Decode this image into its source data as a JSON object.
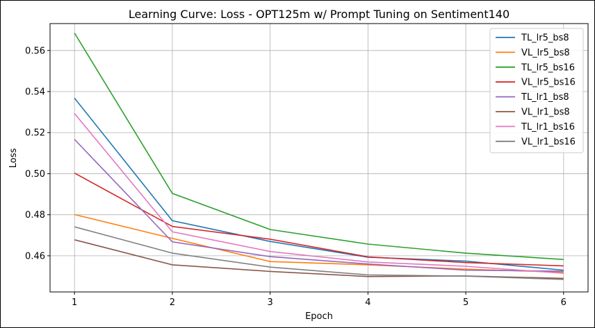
{
  "chart_data": {
    "type": "line",
    "title": "Learning Curve: Loss - OPT125m w/ Prompt Tuning on Sentiment140",
    "xlabel": "Epoch",
    "ylabel": "Loss",
    "x": [
      1,
      2,
      3,
      4,
      5,
      6
    ],
    "xlim": [
      0.75,
      6.25
    ],
    "ylim": [
      0.4424,
      0.5731
    ],
    "yticks": [
      0.46,
      0.48,
      0.5,
      0.52,
      0.54,
      0.56
    ],
    "ytick_labels": [
      "0.46",
      "0.48",
      "0.50",
      "0.52",
      "0.54",
      "0.56"
    ],
    "xtick_labels": [
      "1",
      "2",
      "3",
      "4",
      "5",
      "6"
    ],
    "grid": true,
    "legend_position": "top-right",
    "series": [
      {
        "name": "TL_lr5_bs8",
        "color": "#1f77b4",
        "values": [
          0.5368,
          0.4771,
          0.467,
          0.4593,
          0.4574,
          0.453
        ]
      },
      {
        "name": "VL_lr5_bs8",
        "color": "#ff7f0e",
        "values": [
          0.4801,
          0.4685,
          0.4572,
          0.4556,
          0.4535,
          0.452
        ]
      },
      {
        "name": "TL_lr5_bs16",
        "color": "#2ca02c",
        "values": [
          0.5685,
          0.4904,
          0.4728,
          0.4657,
          0.4613,
          0.4582
        ]
      },
      {
        "name": "VL_lr5_bs16",
        "color": "#d62728",
        "values": [
          0.5003,
          0.4743,
          0.4681,
          0.4595,
          0.4567,
          0.4551
        ]
      },
      {
        "name": "TL_lr1_bs8",
        "color": "#9467bd",
        "values": [
          0.5167,
          0.4668,
          0.4596,
          0.456,
          0.453,
          0.4525
        ]
      },
      {
        "name": "VL_lr1_bs8",
        "color": "#8c564b",
        "values": [
          0.4678,
          0.4556,
          0.4524,
          0.4499,
          0.4502,
          0.449
        ]
      },
      {
        "name": "TL_lr1_bs16",
        "color": "#e377c2",
        "values": [
          0.5293,
          0.4717,
          0.4621,
          0.457,
          0.4549,
          0.4515
        ]
      },
      {
        "name": "VL_lr1_bs16",
        "color": "#7f7f7f",
        "values": [
          0.4741,
          0.4613,
          0.4545,
          0.4507,
          0.4501,
          0.4485
        ]
      }
    ]
  }
}
